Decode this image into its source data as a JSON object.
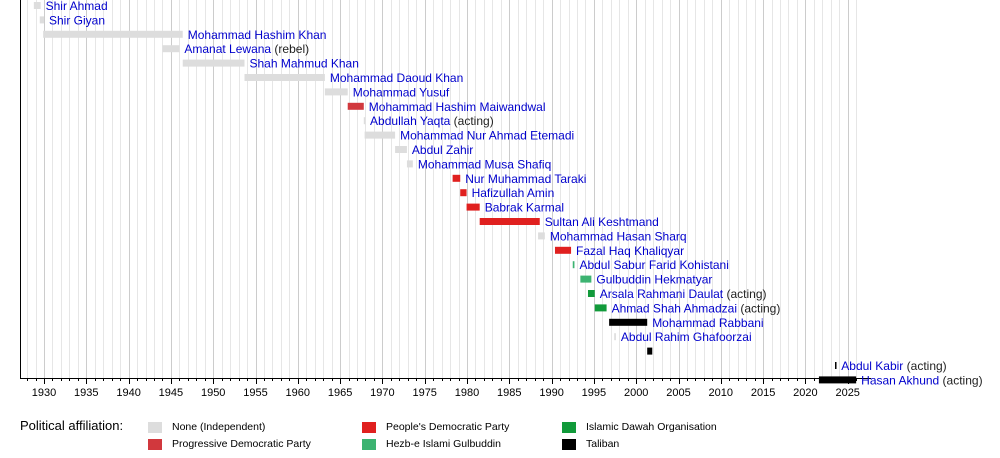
{
  "chart_data": {
    "type": "bar",
    "subtype": "timeline-gantt",
    "xlim": [
      1927,
      2027
    ],
    "x_ticks": [
      1930,
      1935,
      1940,
      1945,
      1950,
      1955,
      1960,
      1965,
      1970,
      1975,
      1980,
      1985,
      1990,
      1995,
      2000,
      2005,
      2010,
      2015,
      2020,
      2025
    ],
    "grid": true,
    "legend_title": "Political affiliation:",
    "legend_placement": "bottom",
    "affiliations": [
      {
        "key": "none",
        "name": "None (Independent)",
        "color": "#dddddd"
      },
      {
        "key": "pdg",
        "name": "Progressive Democratic Party",
        "color": "#d1383d"
      },
      {
        "key": "pdpa",
        "name": "People's Democratic Party",
        "color": "#e0201f"
      },
      {
        "key": "hig",
        "name": "Hezb-e Islami Gulbuddin",
        "color": "#3cb371"
      },
      {
        "key": "ido",
        "name": "Islamic Dawah Organisation",
        "color": "#119a3a"
      },
      {
        "key": "taliban",
        "name": "Taliban",
        "color": "#000000"
      }
    ],
    "terms": [
      {
        "name": "Shir Ahmad",
        "note": "",
        "affiliation": "none",
        "start": 1928.8,
        "end": 1929.6
      },
      {
        "name": "Shir Giyan",
        "note": "",
        "affiliation": "none",
        "start": 1929.5,
        "end": 1930.0
      },
      {
        "name": "Mohammad Hashim Khan",
        "note": "",
        "affiliation": "none",
        "start": 1929.9,
        "end": 1946.4
      },
      {
        "name": "Amanat Lewana",
        "note": "(rebel)",
        "affiliation": "none",
        "start": 1944.0,
        "end": 1946.0
      },
      {
        "name": "Shah Mahmud Khan",
        "note": "",
        "affiliation": "none",
        "start": 1946.4,
        "end": 1953.7
      },
      {
        "name": "Mohammad Daoud Khan",
        "note": "",
        "affiliation": "none",
        "start": 1953.7,
        "end": 1963.2
      },
      {
        "name": "Mohammad Yusuf",
        "note": "",
        "affiliation": "none",
        "start": 1963.2,
        "end": 1965.9
      },
      {
        "name": "Mohammad Hashim Maiwandwal",
        "note": "",
        "affiliation": "pdg",
        "start": 1965.9,
        "end": 1967.8
      },
      {
        "name": "Abdullah Yaqta",
        "note": "(acting)",
        "affiliation": "none",
        "start": 1967.8,
        "end": 1967.95
      },
      {
        "name": "Mohammad Nur Ahmad Etemadi",
        "note": "",
        "affiliation": "none",
        "start": 1967.9,
        "end": 1971.5
      },
      {
        "name": "Abdul Zahir",
        "note": "",
        "affiliation": "none",
        "start": 1971.5,
        "end": 1972.9
      },
      {
        "name": "Mohammad Musa Shafiq",
        "note": "",
        "affiliation": "none",
        "start": 1972.9,
        "end": 1973.6
      },
      {
        "name": "Nur Muhammad Taraki",
        "note": "",
        "affiliation": "pdpa",
        "start": 1978.3,
        "end": 1979.2
      },
      {
        "name": "Hafizullah Amin",
        "note": "",
        "affiliation": "pdpa",
        "start": 1979.2,
        "end": 1979.95
      },
      {
        "name": "Babrak Karmal",
        "note": "",
        "affiliation": "pdpa",
        "start": 1979.95,
        "end": 1981.5
      },
      {
        "name": "Sultan Ali Keshtmand",
        "note": "",
        "affiliation": "pdpa",
        "start": 1981.5,
        "end": 1988.6
      },
      {
        "name": "Mohammad Hasan Sharq",
        "note": "",
        "affiliation": "none",
        "start": 1988.4,
        "end": 1989.2
      },
      {
        "name": "Fazal Haq Khaliqyar",
        "note": "",
        "affiliation": "pdpa",
        "start": 1990.4,
        "end": 1992.3
      },
      {
        "name": "Abdul Sabur Farid Kohistani",
        "note": "",
        "affiliation": "hig",
        "start": 1992.5,
        "end": 1992.7
      },
      {
        "name": "Gulbuddin Hekmatyar",
        "note": "",
        "affiliation": "hig",
        "start": 1993.4,
        "end": 1994.7
      },
      {
        "name": "Arsala Rahmani Daulat",
        "note": "(acting)",
        "affiliation": "ido",
        "start": 1994.3,
        "end": 1995.1
      },
      {
        "name": "Ahmad Shah Ahmadzai",
        "note": "(acting)",
        "affiliation": "ido",
        "start": 1995.1,
        "end": 1996.5
      },
      {
        "name": "Mohammad Rabbani",
        "note": "",
        "affiliation": "taliban",
        "start": 1996.8,
        "end": 2001.3
      },
      {
        "name": "Abdul Rahim Ghafoorzai",
        "note": "",
        "affiliation": "none",
        "start": 1997.4,
        "end": 1997.6
      },
      {
        "name": "",
        "note": "",
        "affiliation": "taliban",
        "start": 2001.3,
        "end": 2001.9
      },
      {
        "name": "Abdul Kabir",
        "note": "(acting)",
        "affiliation": "taliban",
        "start": 2023.5,
        "end": 2023.65
      },
      {
        "name": "Hasan Akhund",
        "note": "(acting)",
        "affiliation": "taliban",
        "start": 2021.6,
        "end": 2026.0
      }
    ]
  }
}
